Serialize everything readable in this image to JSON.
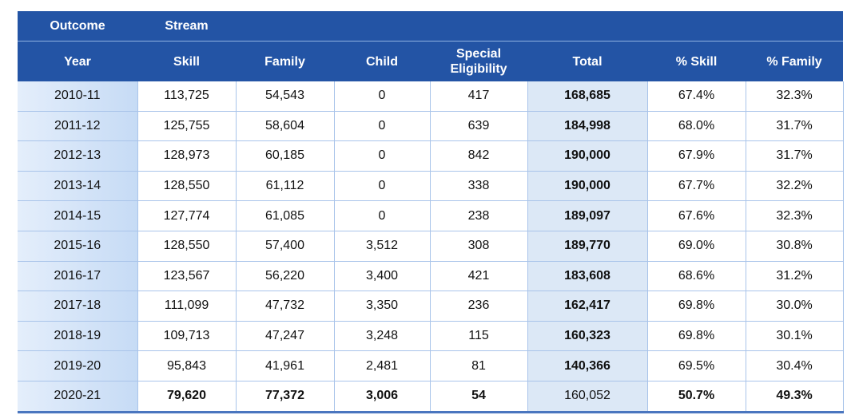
{
  "table": {
    "group_header": [
      "Outcome",
      "Stream"
    ],
    "columns": [
      "Year",
      "Skill",
      "Family",
      "Child",
      "Special Eligibility",
      "Total",
      "% Skill",
      "% Family"
    ],
    "rows": [
      [
        "2010-11",
        "113,725",
        "54,543",
        "0",
        "417",
        "168,685",
        "67.4%",
        "32.3%"
      ],
      [
        "2011-12",
        "125,755",
        "58,604",
        "0",
        "639",
        "184,998",
        "68.0%",
        "31.7%"
      ],
      [
        "2012-13",
        "128,973",
        "60,185",
        "0",
        "842",
        "190,000",
        "67.9%",
        "31.7%"
      ],
      [
        "2013-14",
        "128,550",
        "61,112",
        "0",
        "338",
        "190,000",
        "67.7%",
        "32.2%"
      ],
      [
        "2014-15",
        "127,774",
        "61,085",
        "0",
        "238",
        "189,097",
        "67.6%",
        "32.3%"
      ],
      [
        "2015-16",
        "128,550",
        "57,400",
        "3,512",
        "308",
        "189,770",
        "69.0%",
        "30.8%"
      ],
      [
        "2016-17",
        "123,567",
        "56,220",
        "3,400",
        "421",
        "183,608",
        "68.6%",
        "31.2%"
      ],
      [
        "2017-18",
        "111,099",
        "47,732",
        "3,350",
        "236",
        "162,417",
        "69.8%",
        "30.0%"
      ],
      [
        "2018-19",
        "109,713",
        "47,247",
        "3,248",
        "115",
        "160,323",
        "69.8%",
        "30.1%"
      ],
      [
        "2019-20",
        "95,843",
        "41,961",
        "2,481",
        "81",
        "140,366",
        "69.5%",
        "30.4%"
      ],
      [
        "2020-21",
        "79,620",
        "77,372",
        "3,006",
        "54",
        "160,052",
        "50.7%",
        "49.3%"
      ]
    ]
  }
}
